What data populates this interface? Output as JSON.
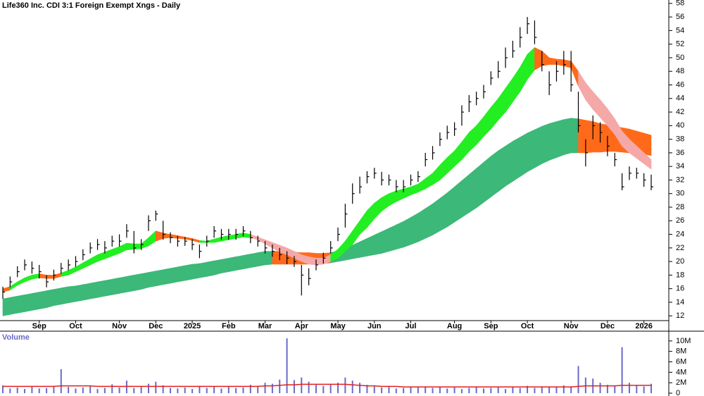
{
  "chart_data": [
    {
      "type": "hlc",
      "title": "Life360 Inc. CDI 3:1 Foreign Exempt Xngs - Daily",
      "categories": [
        null,
        null,
        null,
        null,
        null,
        "Sep",
        null,
        null,
        null,
        null,
        "Oct",
        null,
        null,
        null,
        null,
        null,
        "Nov",
        null,
        null,
        null,
        null,
        "Dec",
        null,
        null,
        null,
        null,
        "2025",
        null,
        null,
        null,
        null,
        "Feb",
        null,
        null,
        null,
        null,
        "Mar",
        null,
        null,
        null,
        null,
        "Apr",
        null,
        null,
        null,
        null,
        "May",
        null,
        null,
        null,
        null,
        "Jun",
        null,
        null,
        null,
        null,
        "Jul",
        null,
        null,
        null,
        null,
        null,
        "Aug",
        null,
        null,
        null,
        null,
        "Sep",
        null,
        null,
        null,
        null,
        "Oct",
        null,
        null,
        null,
        null,
        null,
        "Nov",
        null,
        null,
        null,
        null,
        "Dec",
        null,
        null,
        null,
        null,
        "2026",
        null
      ],
      "close": [
        15.5,
        17,
        18.5,
        19.5,
        19,
        18.5,
        17,
        18,
        19,
        19.5,
        20,
        21,
        22,
        22.5,
        22,
        23,
        23,
        24.5,
        22,
        22.5,
        26,
        27,
        24,
        23.5,
        23,
        23,
        22.5,
        21.5,
        23,
        24.5,
        24,
        24,
        24,
        24.5,
        23.5,
        23,
        22,
        21.5,
        21,
        20.5,
        20,
        18,
        17.5,
        19.5,
        20.5,
        22,
        24,
        27,
        30,
        31,
        32.5,
        33,
        32,
        32,
        31,
        31,
        32,
        32.5,
        35,
        36,
        38,
        39,
        39.5,
        42,
        43.5,
        44,
        45,
        47,
        48,
        50,
        51,
        53,
        55,
        53,
        49,
        46,
        48,
        49,
        46,
        40,
        36,
        40,
        39,
        37,
        35,
        31,
        33,
        33,
        32,
        31
      ],
      "high": [
        16.3,
        17.8,
        19.3,
        20.3,
        20,
        19.5,
        18,
        18.8,
        19.8,
        20.3,
        20.8,
        21.8,
        22.8,
        23.3,
        23,
        23.8,
        24,
        25.5,
        24.5,
        23.3,
        26.8,
        27.5,
        26,
        24.3,
        23.8,
        23.6,
        23.3,
        22.5,
        23.8,
        25.2,
        24.8,
        24.8,
        24.8,
        25.2,
        24.5,
        23.8,
        23,
        22.5,
        22,
        21.5,
        20.8,
        19.5,
        19,
        20.3,
        21.3,
        23,
        25,
        28.5,
        31.5,
        32.5,
        33.3,
        33.8,
        33.2,
        32.8,
        32,
        32,
        32.8,
        33.3,
        36,
        37,
        39,
        40,
        40.5,
        43,
        44.5,
        45,
        46,
        48,
        49.5,
        51.5,
        52.5,
        54.5,
        56,
        55.5,
        51,
        48,
        49.5,
        51,
        51,
        45,
        38,
        41.5,
        40.5,
        38.5,
        36,
        33,
        34,
        33.8,
        33,
        32.8
      ],
      "low": [
        14.5,
        16.2,
        17.7,
        18.7,
        18.2,
        17.5,
        16.2,
        17.2,
        18.2,
        18.7,
        19.2,
        20.2,
        21.2,
        21.7,
        21.2,
        22.2,
        22.2,
        23.5,
        21.2,
        21.7,
        24.5,
        26,
        23.2,
        22.7,
        22.2,
        22.3,
        21.7,
        20.5,
        22.2,
        23.5,
        23.2,
        23.2,
        23.2,
        23.7,
        22.7,
        22.2,
        21.2,
        20.7,
        20.2,
        19.6,
        19.2,
        15,
        16.5,
        18.7,
        19.7,
        21.2,
        23,
        25,
        28.5,
        30,
        31.5,
        32.2,
        31.2,
        31.2,
        30.2,
        30.2,
        31.2,
        31.7,
        34,
        35,
        37,
        38,
        38.5,
        40,
        42,
        43,
        44,
        46,
        47,
        48.5,
        50,
        51.5,
        53.5,
        52,
        48,
        44.5,
        46.5,
        47.5,
        45,
        39,
        34,
        38,
        37.5,
        35.5,
        34,
        30.5,
        32,
        32.2,
        31,
        30.5
      ],
      "color": "#000000",
      "bands": [
        {
          "upper": [
            14.5,
            14.7,
            14.9,
            15.1,
            15.3,
            15.5,
            15.7,
            15.9,
            16.1,
            16.3,
            16.4,
            16.6,
            16.8,
            17,
            17.2,
            17.4,
            17.6,
            17.8,
            18,
            18.2,
            18.4,
            18.6,
            18.8,
            19,
            19.2,
            19.4,
            19.6,
            19.7,
            19.9,
            20.1,
            20.3,
            20.5,
            20.7,
            20.9,
            21.1,
            21.3,
            21.5,
            21.5,
            21.5,
            21.4,
            21.4,
            21.3,
            21.3,
            21.2,
            21.2,
            21.3,
            21.6,
            22,
            22.4,
            22.9,
            23.4,
            23.9,
            24.4,
            24.9,
            25.4,
            25.9,
            26.5,
            27.1,
            27.8,
            28.5,
            29.3,
            30.1,
            31,
            31.9,
            32.8,
            33.7,
            34.6,
            35.5,
            36.3,
            37,
            37.7,
            38.3,
            38.9,
            39.4,
            39.9,
            40.3,
            40.6,
            40.9,
            41.1,
            41,
            40.8,
            40.6,
            40.3,
            40.1,
            39.9,
            39.7,
            39.5,
            39.2,
            38.9,
            38.6
          ],
          "lower": [
            12,
            12.2,
            12.4,
            12.6,
            12.8,
            13,
            13.2,
            13.5,
            13.7,
            13.9,
            14.1,
            14.3,
            14.5,
            14.7,
            14.9,
            15.1,
            15.3,
            15.5,
            15.7,
            15.9,
            16.2,
            16.4,
            16.6,
            16.8,
            17,
            17.2,
            17.4,
            17.6,
            17.8,
            18,
            18.3,
            18.5,
            18.7,
            18.9,
            19.1,
            19.3,
            19.5,
            19.6,
            19.6,
            19.6,
            19.6,
            19.6,
            19.6,
            19.6,
            19.7,
            19.8,
            20,
            20.2,
            20.4,
            20.6,
            20.8,
            21,
            21.2,
            21.5,
            21.8,
            22.1,
            22.5,
            22.9,
            23.4,
            23.9,
            24.5,
            25.1,
            25.8,
            26.5,
            27.2,
            27.9,
            28.7,
            29.5,
            30.3,
            31.1,
            31.8,
            32.5,
            33.2,
            33.8,
            34.4,
            34.9,
            35.3,
            35.7,
            36,
            36,
            36,
            36.1,
            36.1,
            36.2,
            36.2,
            36.1,
            36,
            35.9,
            35.8,
            35.6
          ],
          "colors": [
            "#3cb878",
            "#3cb878",
            "#3cb878",
            "#3cb878",
            "#3cb878",
            "#3cb878",
            "#3cb878",
            "#3cb878",
            "#3cb878",
            "#3cb878",
            "#3cb878",
            "#3cb878",
            "#3cb878",
            "#3cb878",
            "#3cb878",
            "#3cb878",
            "#3cb878",
            "#3cb878",
            "#3cb878",
            "#3cb878",
            "#3cb878",
            "#3cb878",
            "#3cb878",
            "#3cb878",
            "#3cb878",
            "#3cb878",
            "#3cb878",
            "#3cb878",
            "#3cb878",
            "#3cb878",
            "#3cb878",
            "#3cb878",
            "#3cb878",
            "#3cb878",
            "#3cb878",
            "#3cb878",
            "#3cb878",
            "#ff6a1a",
            "#ff6a1a",
            "#ff6a1a",
            "#ff6a1a",
            "#ff6a1a",
            "#ff6a1a",
            "#ff6a1a",
            "#ff6a1a",
            "#3cb878",
            "#3cb878",
            "#3cb878",
            "#3cb878",
            "#3cb878",
            "#3cb878",
            "#3cb878",
            "#3cb878",
            "#3cb878",
            "#3cb878",
            "#3cb878",
            "#3cb878",
            "#3cb878",
            "#3cb878",
            "#3cb878",
            "#3cb878",
            "#3cb878",
            "#3cb878",
            "#3cb878",
            "#3cb878",
            "#3cb878",
            "#3cb878",
            "#3cb878",
            "#3cb878",
            "#3cb878",
            "#3cb878",
            "#3cb878",
            "#3cb878",
            "#3cb878",
            "#3cb878",
            "#3cb878",
            "#3cb878",
            "#3cb878",
            "#3cb878",
            "#ff6a1a",
            "#ff6a1a",
            "#ff6a1a",
            "#ff6a1a",
            "#ff6a1a",
            "#ff6a1a",
            "#ff6a1a",
            "#ff6a1a",
            "#ff6a1a",
            "#ff6a1a",
            "#ff6a1a"
          ]
        },
        {
          "upper": [
            16,
            16.3,
            17,
            17.6,
            18,
            18.2,
            18,
            18,
            18.3,
            18.7,
            19.2,
            19.8,
            20.4,
            21,
            21.4,
            21.8,
            22.2,
            22.7,
            22.6,
            22.6,
            23.5,
            24.5,
            24.2,
            24,
            23.8,
            23.6,
            23.4,
            23.1,
            23,
            23.3,
            23.6,
            23.8,
            24,
            24.2,
            24,
            23.6,
            23.2,
            22.8,
            22.4,
            22,
            21.5,
            21,
            20.7,
            20.5,
            20.5,
            21,
            21.8,
            23,
            24.5,
            26,
            27.5,
            28.6,
            29.4,
            30,
            30.4,
            30.7,
            31,
            31.4,
            32.2,
            33,
            34.2,
            35.3,
            36.3,
            37.6,
            39,
            40,
            41.3,
            42.7,
            44,
            45.5,
            47,
            48.6,
            50.5,
            51.5,
            51,
            50,
            49.8,
            49.7,
            49.5,
            48,
            46.3,
            45,
            43.8,
            42.5,
            41,
            39.2,
            38,
            37,
            36,
            35
          ],
          "lower": [
            15.5,
            15.8,
            16.5,
            17,
            17.4,
            17.6,
            17.5,
            17.5,
            17.8,
            18,
            18.5,
            19,
            19.5,
            20,
            20.4,
            20.8,
            21.2,
            21.7,
            21.8,
            21.9,
            22.3,
            23,
            23.4,
            23.5,
            23.4,
            23.3,
            23.1,
            22.8,
            22.8,
            22.8,
            23,
            23.2,
            23.4,
            23.6,
            23.5,
            23.2,
            22.6,
            22,
            21.4,
            21,
            20.5,
            20,
            19.6,
            19.5,
            19.6,
            20,
            20.5,
            21.5,
            22.5,
            24,
            25,
            26.3,
            27.4,
            28.2,
            28.8,
            29.3,
            29.8,
            30.2,
            30.7,
            31.3,
            32,
            33,
            34,
            35,
            36.2,
            37.2,
            38.4,
            39.5,
            40.8,
            42,
            43.5,
            45,
            46.8,
            48.2,
            48.8,
            49,
            49,
            48.8,
            48.5,
            45.8,
            43.8,
            42.4,
            41.2,
            40,
            38.7,
            37,
            36,
            35.2,
            34.4,
            33.6
          ],
          "colors": [
            "#ff6a1a",
            "#22ee22",
            "#22ee22",
            "#22ee22",
            "#22ee22",
            "#ff6a1a",
            "#ff6a1a",
            "#ff6a1a",
            "#22ee22",
            "#22ee22",
            "#22ee22",
            "#22ee22",
            "#22ee22",
            "#22ee22",
            "#22ee22",
            "#22ee22",
            "#22ee22",
            "#22ee22",
            "#22ee22",
            "#22ee22",
            "#22ee22",
            "#ff6a1a",
            "#ff6a1a",
            "#ff6a1a",
            "#ff6a1a",
            "#ff6a1a",
            "#ff6a1a",
            "#22ee22",
            "#22ee22",
            "#22ee22",
            "#22ee22",
            "#22ee22",
            "#22ee22",
            "#22ee22",
            "#f4a8a8",
            "#f4a8a8",
            "#f4a8a8",
            "#f4a8a8",
            "#f4a8a8",
            "#f4a8a8",
            "#f4a8a8",
            "#f4a8a8",
            "#f4a8a8",
            "#f4a8a8",
            "#f4a8a8",
            "#22ee22",
            "#22ee22",
            "#22ee22",
            "#22ee22",
            "#22ee22",
            "#22ee22",
            "#22ee22",
            "#22ee22",
            "#22ee22",
            "#22ee22",
            "#22ee22",
            "#22ee22",
            "#22ee22",
            "#22ee22",
            "#22ee22",
            "#22ee22",
            "#22ee22",
            "#22ee22",
            "#22ee22",
            "#22ee22",
            "#22ee22",
            "#22ee22",
            "#22ee22",
            "#22ee22",
            "#22ee22",
            "#22ee22",
            "#22ee22",
            "#22ee22",
            "#ff6a1a",
            "#ff6a1a",
            "#ff6a1a",
            "#ff6a1a",
            "#ff6a1a",
            "#ff6a1a",
            "#f4a8a8",
            "#f4a8a8",
            "#f4a8a8",
            "#f4a8a8",
            "#f4a8a8",
            "#f4a8a8",
            "#f4a8a8",
            "#f4a8a8",
            "#f4a8a8",
            "#f4a8a8",
            "#f4a8a8"
          ]
        }
      ],
      "ylim": [
        11.3,
        58.5
      ],
      "yticks": [
        12,
        14,
        16,
        18,
        20,
        22,
        24,
        26,
        28,
        30,
        32,
        34,
        36,
        38,
        40,
        42,
        44,
        46,
        48,
        50,
        52,
        54,
        56,
        58
      ]
    },
    {
      "type": "bar",
      "title": "Volume",
      "color": "#6a6ac8",
      "average_color": "#e02020",
      "values": [
        1500000,
        900000,
        1100000,
        800000,
        1300000,
        900000,
        1000000,
        1400000,
        4600000,
        1200000,
        900000,
        1100000,
        1300000,
        800000,
        1000000,
        1700000,
        1100000,
        2400000,
        1000000,
        1200000,
        1800000,
        2200000,
        1500000,
        1000000,
        900000,
        1100000,
        800000,
        1400000,
        1000000,
        1200000,
        900000,
        1300000,
        1000000,
        1100000,
        1600000,
        1400000,
        2000000,
        1800000,
        2600000,
        10500000,
        2500000,
        3000000,
        2200000,
        1600000,
        1400000,
        1800000,
        2000000,
        3000000,
        2400000,
        2000000,
        1600000,
        1300000,
        1100000,
        1200000,
        900000,
        1000000,
        1200000,
        1100000,
        1300000,
        1000000,
        1200000,
        900000,
        1100000,
        800000,
        1000000,
        1200000,
        900000,
        1000000,
        1100000,
        800000,
        1200000,
        1000000,
        1400000,
        1000000,
        1300000,
        1100000,
        1200000,
        1500000,
        1300000,
        5200000,
        3000000,
        2800000,
        2000000,
        1600000,
        1400000,
        8800000,
        2000000,
        1500000,
        1300000,
        1800000
      ],
      "average": [
        1300000,
        1300000,
        1300000,
        1300000,
        1300000,
        1300000,
        1300000,
        1300000,
        1400000,
        1400000,
        1400000,
        1400000,
        1400000,
        1300000,
        1300000,
        1300000,
        1300000,
        1300000,
        1300000,
        1300000,
        1300000,
        1300000,
        1300000,
        1300000,
        1300000,
        1300000,
        1300000,
        1300000,
        1300000,
        1300000,
        1300000,
        1300000,
        1300000,
        1300000,
        1300000,
        1300000,
        1400000,
        1400000,
        1500000,
        1600000,
        1600000,
        1700000,
        1700000,
        1700000,
        1700000,
        1700000,
        1700000,
        1700000,
        1600000,
        1500000,
        1400000,
        1400000,
        1300000,
        1300000,
        1300000,
        1200000,
        1200000,
        1200000,
        1200000,
        1200000,
        1200000,
        1200000,
        1200000,
        1200000,
        1200000,
        1200000,
        1200000,
        1200000,
        1200000,
        1200000,
        1200000,
        1200000,
        1200000,
        1200000,
        1200000,
        1200000,
        1200000,
        1200000,
        1200000,
        1300000,
        1400000,
        1400000,
        1400000,
        1400000,
        1400000,
        1500000,
        1500000,
        1500000,
        1500000,
        1500000
      ],
      "ylim": [
        0,
        11600000
      ],
      "yticks": [
        0,
        {
          "value": 2000000,
          "label": "2M"
        },
        {
          "value": 4000000,
          "label": "4M"
        },
        {
          "value": 6000000,
          "label": "6M"
        },
        {
          "value": 8000000,
          "label": "8M"
        },
        {
          "value": 10000000,
          "label": "10M"
        }
      ]
    }
  ]
}
